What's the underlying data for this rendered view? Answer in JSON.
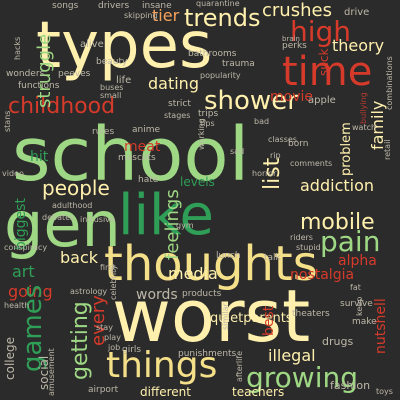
{
  "words": {
    "school": "school",
    "worst": "worst",
    "types": "types",
    "gen": "gen",
    "like": "like",
    "thoughts": "thoughts",
    "things": "things",
    "time": "time",
    "trends": "trends",
    "high": "high",
    "shower": "shower",
    "childhood": "childhood",
    "people": "people",
    "mobile": "mobile",
    "pain": "pain",
    "list": "list",
    "addiction": "addiction",
    "growing": "growing",
    "games": "games",
    "getting": "getting",
    "crushes": "crushes",
    "tier": "tier",
    "dating": "dating",
    "movie": "movie",
    "struggle": "struggle",
    "feelings": "feelings",
    "theory": "theory",
    "family": "family",
    "nostalgia": "nostalgia",
    "media": "media",
    "words": "words",
    "back": "back",
    "going": "going",
    "every": "every",
    "meat": "meat",
    "alpha": "alpha",
    "quietparents": "quietparents",
    "illegal": "illegal",
    "best": "best",
    "art": "art",
    "hit": "hit",
    "levels": "levels",
    "problem": "problem",
    "nutshell": "nutshell",
    "college": "college",
    "teachers": "teachers",
    "different": "different",
    "suck": "suck",
    "apple": "apple",
    "biggest": "biggest",
    "drugs": "drugs",
    "fashion": "fashion",
    "social": "social",
    "life": "life",
    "alive": "alive",
    "songs": "songs",
    "drivers": "drivers",
    "insane": "insane",
    "skipping": "skipping",
    "bathrooms": "bathrooms",
    "popularity": "popularity",
    "trauma": "trauma",
    "perks": "perks",
    "drive": "drive",
    "wonders": "wonders",
    "peeves": "peeves",
    "functions": "functions",
    "beauty": "beauty",
    "strict": "strict",
    "anime": "anime",
    "mascots": "mascots",
    "rules": "rules",
    "video": "video",
    "hate": "hate",
    "tips": "tips",
    "trips": "trips",
    "stages": "stages",
    "born": "born",
    "sad": "sad",
    "gym": "gym",
    "horror": "horror",
    "riders": "riders",
    "stupid": "stupid",
    "talk": "talk",
    "lunch": "lunch",
    "first": "first",
    "astrology": "astrology",
    "products": "products",
    "survive": "survive",
    "theaters": "theaters",
    "make": "make",
    "girls": "girls",
    "job": "job",
    "play": "play",
    "stay": "stay",
    "punishments": "punishments",
    "afterlife": "afterlife",
    "airport": "airport",
    "toys": "toys",
    "retail": "retail",
    "bullying": "bullying",
    "combinations": "combinations",
    "watch": "watch",
    "classes": "classes",
    "conspiracy": "conspiracy",
    "debates": "debates",
    "intrusive": "intrusive",
    "health": "health",
    "fat": "fat",
    "amusement": "amusement",
    "comments": "comments",
    "quarantine": "quarantine",
    "brain": "brain",
    "buses": "buses",
    "small": "small",
    "bad": "bad",
    "adulthood": "adulthood",
    "rip": "rip",
    "celebrity": "celebrity",
    "working": "working",
    "similar": "similar",
    "keep": "keep",
    "stans": "stans",
    "hacks": "hacks"
  }
}
